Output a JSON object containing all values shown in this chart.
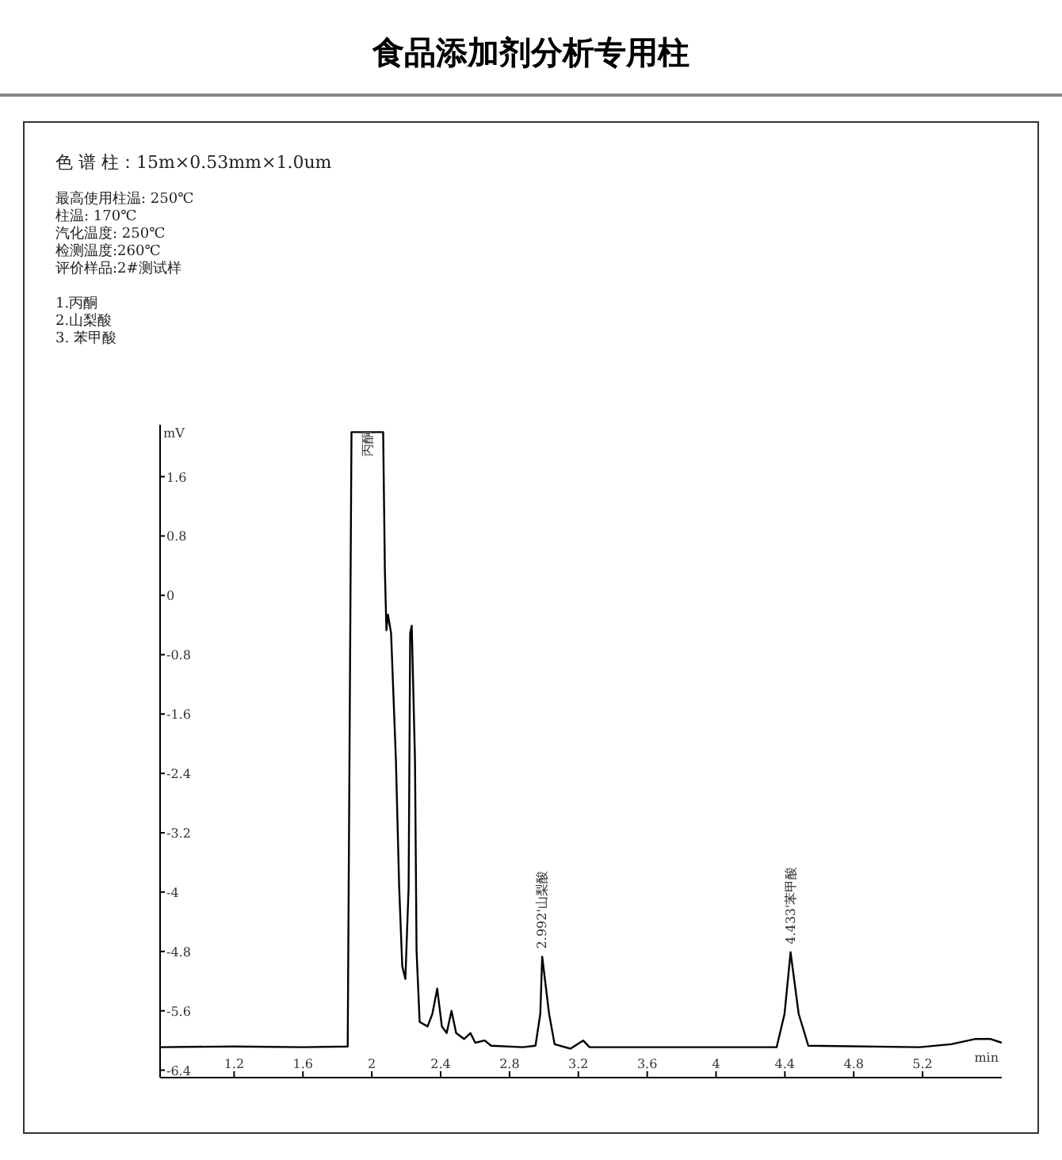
{
  "chart_data": {
    "type": "line",
    "title": "食品添加剂分析专用柱",
    "xlabel": "min",
    "ylabel": "mV",
    "annotations": [
      "色 谱 柱：15m×0.53mm×1.0um",
      "最高使用柱温: 250℃",
      "柱温: 170℃",
      "汽化温度: 250℃",
      "检测温度:260℃",
      "评价样品:2#测试样",
      "1.丙酮",
      "2.山梨酸",
      "3. 苯甲酸",
      {
        "text": "丙酮",
        "x": 1.882,
        "y": 2.2
      },
      {
        "text": "2.992'山梨酸",
        "x": 2.99,
        "y": -4.87
      },
      {
        "text": "4.433'苯甲酸",
        "x": 4.433,
        "y": -4.81
      }
    ],
    "x": [
      0.77,
      1.2,
      1.6,
      1.86,
      1.882,
      2.066,
      2.076,
      2.085,
      2.094,
      2.112,
      2.14,
      2.159,
      2.177,
      2.195,
      2.214,
      2.223,
      2.232,
      2.251,
      2.26,
      2.278,
      2.324,
      2.352,
      2.38,
      2.407,
      2.435,
      2.463,
      2.49,
      2.536,
      2.573,
      2.601,
      2.656,
      2.693,
      2.877,
      2.951,
      2.979,
      2.99,
      3.03,
      3.062,
      3.154,
      3.228,
      3.265,
      3.523,
      4.0,
      4.352,
      4.398,
      4.433,
      4.48,
      4.536,
      5.182,
      5.366,
      5.504,
      5.596,
      5.66
    ],
    "series": [
      {
        "color": "#000000",
        "values": [
          -6.09,
          -6.08,
          -6.09,
          -6.08,
          2.2,
          2.2,
          0.34,
          -0.47,
          -0.26,
          -0.51,
          -2.22,
          -3.93,
          -5.0,
          -5.17,
          -3.93,
          -0.51,
          -0.41,
          -2.22,
          -4.79,
          -5.75,
          -5.81,
          -5.64,
          -5.3,
          -5.81,
          -5.9,
          -5.6,
          -5.9,
          -5.98,
          -5.9,
          -6.03,
          -6.0,
          -6.07,
          -6.09,
          -6.07,
          -5.64,
          -4.87,
          -5.64,
          -6.05,
          -6.11,
          -6.0,
          -6.09,
          -6.09,
          -6.09,
          -6.09,
          -5.64,
          -4.81,
          -5.64,
          -6.07,
          -6.09,
          -6.05,
          -5.98,
          -5.98,
          -6.03
        ]
      }
    ],
    "xlim": [
      0.77,
      5.66
    ],
    "ylim": [
      -6.5,
      2.3
    ],
    "xticks": [
      1.2,
      1.6,
      2,
      2.4,
      2.8,
      3.2,
      3.6,
      4,
      4.4,
      4.8,
      5.2
    ],
    "yticks": [
      1.6,
      0.8,
      0,
      -0.8,
      -1.6,
      -2.4,
      -3.2,
      -4,
      -4.8,
      -5.6,
      -6.4
    ],
    "grid": false,
    "line_style": "solid"
  }
}
